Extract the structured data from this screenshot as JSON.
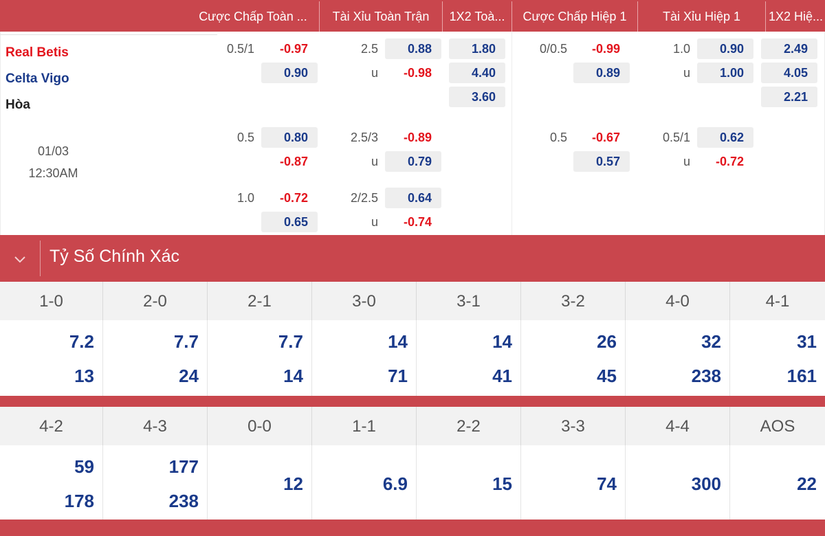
{
  "header": {
    "columns": [
      "Cược Chấp Toàn ...",
      "Tài Xỉu Toàn Trận",
      "1X2 Toà...",
      "Cược Chấp Hiệp 1",
      "Tài Xỉu Hiệp 1",
      "1X2 Hiệ..."
    ]
  },
  "match": {
    "home": "Real Betis",
    "away": "Celta Vigo",
    "draw": "Hòa",
    "date": "01/03",
    "time": "12:30AM"
  },
  "full_time": {
    "handicap": [
      {
        "line": "0.5/1",
        "home": "-0.97",
        "away": "0.90"
      },
      {
        "line": "0.5",
        "home": "0.80",
        "away": "-0.87"
      },
      {
        "line": "1.0",
        "home": "-0.72",
        "away": "0.65"
      }
    ],
    "over_under": [
      {
        "line": "2.5",
        "over": "0.88",
        "under_label": "u",
        "under": "-0.98"
      },
      {
        "line": "2.5/3",
        "over": "-0.89",
        "under_label": "u",
        "under": "0.79"
      },
      {
        "line": "2/2.5",
        "over": "0.64",
        "under_label": "u",
        "under": "-0.74"
      }
    ],
    "x12": [
      "1.80",
      "4.40",
      "3.60"
    ]
  },
  "first_half": {
    "handicap": [
      {
        "line": "0/0.5",
        "home": "-0.99",
        "away": "0.89"
      },
      {
        "line": "0.5",
        "home": "-0.67",
        "away": "0.57"
      }
    ],
    "over_under": [
      {
        "line": "1.0",
        "over": "0.90",
        "under_label": "u",
        "under": "1.00"
      },
      {
        "line": "0.5/1",
        "over": "0.62",
        "under_label": "u",
        "under": "-0.72"
      }
    ],
    "x12": [
      "2.49",
      "4.05",
      "2.21"
    ]
  },
  "exact_score": {
    "title": "Tỷ Số Chính Xác",
    "row1": [
      {
        "score": "1-0",
        "home": "7.2",
        "away": "13"
      },
      {
        "score": "2-0",
        "home": "7.7",
        "away": "24"
      },
      {
        "score": "2-1",
        "home": "7.7",
        "away": "14"
      },
      {
        "score": "3-0",
        "home": "14",
        "away": "71"
      },
      {
        "score": "3-1",
        "home": "14",
        "away": "41"
      },
      {
        "score": "3-2",
        "home": "26",
        "away": "45"
      },
      {
        "score": "4-0",
        "home": "32",
        "away": "238"
      },
      {
        "score": "4-1",
        "home": "31",
        "away": "161"
      }
    ],
    "row2": [
      {
        "score": "4-2",
        "home": "59",
        "away": "178"
      },
      {
        "score": "4-3",
        "home": "177",
        "away": "238"
      },
      {
        "score": "0-0",
        "single": "12"
      },
      {
        "score": "1-1",
        "single": "6.9"
      },
      {
        "score": "2-2",
        "single": "15"
      },
      {
        "score": "3-3",
        "single": "74"
      },
      {
        "score": "4-4",
        "single": "300"
      },
      {
        "score": "AOS",
        "single": "22"
      }
    ]
  },
  "colors": {
    "header_red": "#c9464d",
    "odd_positive": "#1a3a8a",
    "odd_negative": "#e3141d"
  }
}
